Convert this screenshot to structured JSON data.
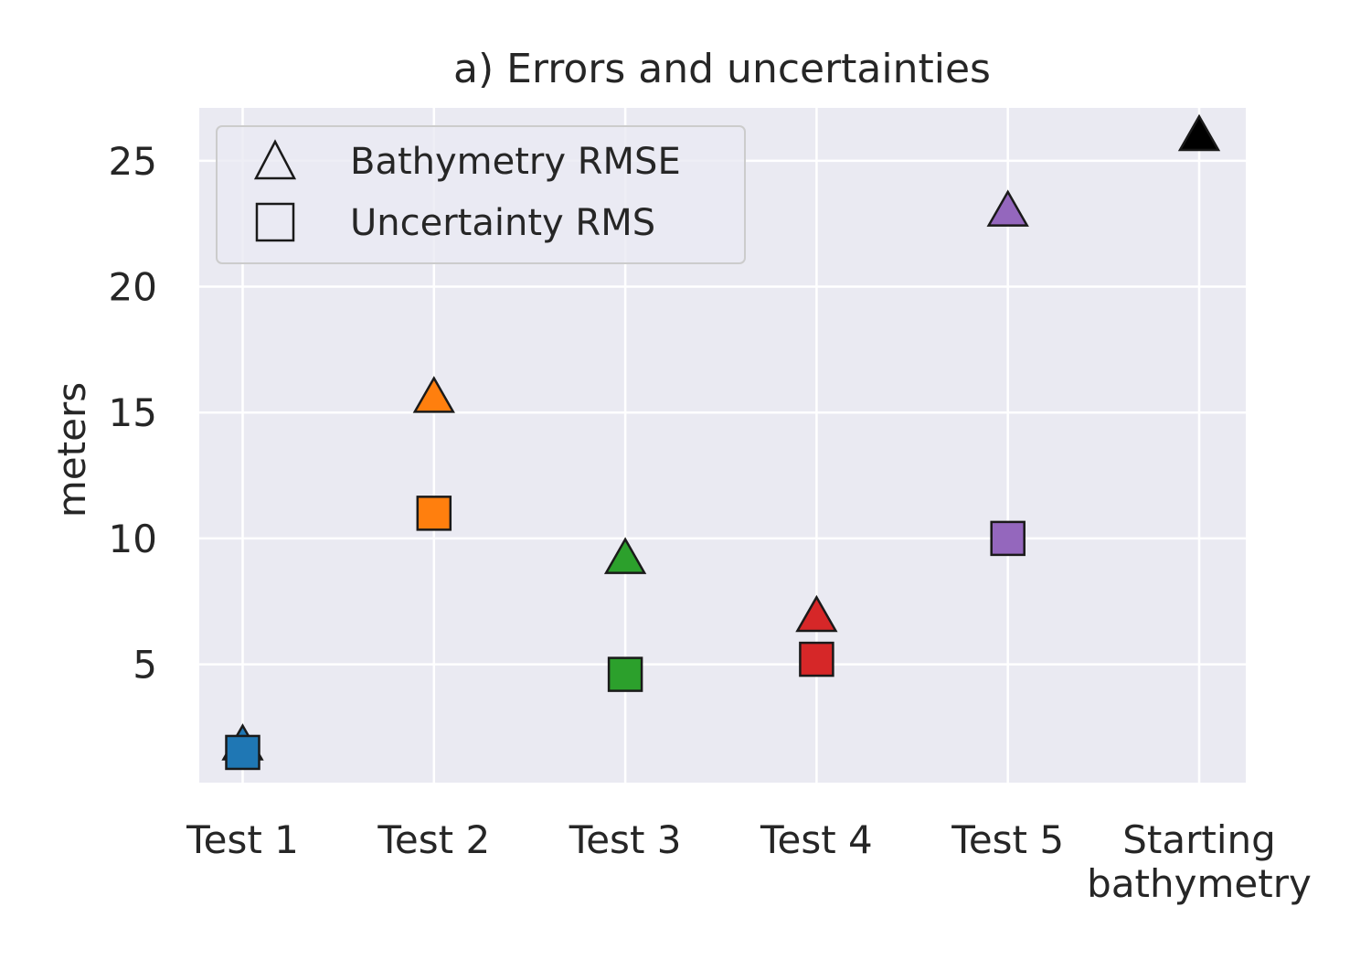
{
  "chart_data": {
    "type": "scatter",
    "title": "a) Errors and uncertainties",
    "xlabel": "",
    "ylabel": "meters",
    "ylim": [
      0.3,
      27.1
    ],
    "yticks": [
      5,
      10,
      15,
      20,
      25
    ],
    "categories": [
      "Test 1",
      "Test 2",
      "Test 3",
      "Test 4",
      "Test 5",
      "Starting\nbathymetry"
    ],
    "grid": true,
    "legend": {
      "placement": "top-left"
    },
    "series": [
      {
        "name": "Bathymetry RMSE",
        "marker": "triangle",
        "values": [
          1.8,
          15.6,
          9.2,
          6.9,
          23.0,
          26.0
        ]
      },
      {
        "name": "Uncertainty RMS",
        "marker": "square",
        "values": [
          1.5,
          11.0,
          4.6,
          5.2,
          10.0,
          null
        ]
      }
    ],
    "point_colors": [
      "#1f77b4",
      "#ff7f0e",
      "#2ca02c",
      "#d62728",
      "#9467bd",
      "#000000"
    ]
  }
}
